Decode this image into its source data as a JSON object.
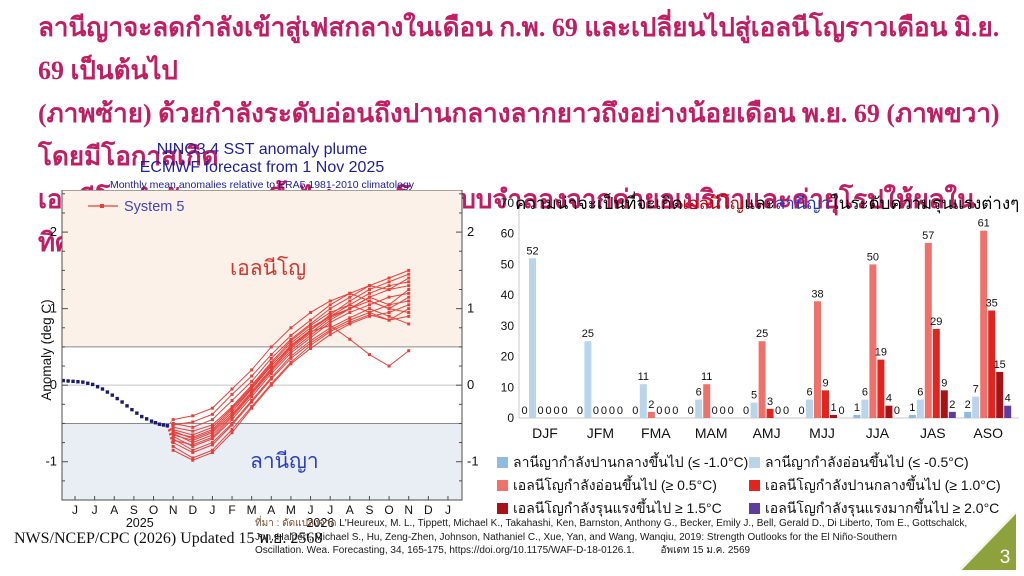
{
  "slide": {
    "header": {
      "color": "#C01E63",
      "lines": [
        "ลานีญาจะลดกำลังเข้าสู่เฟสกลางในเดือน ก.พ. 69 และเปลี่ยนไปสู่เอลนีโญราวเดือน มิ.ย. 69 เป็นต้นไป",
        "(ภาพซ้าย) ด้วยกำลังระดับอ่อนถึงปานกลางลากยาวถึงอย่างน้อยเดือน พ.ย. 69 (ภาพขวา) โดยมีโอกาสเกิด",
        "เอลนีโญกำลังรุนแรงขึ้นไป 20% โดยแบบจำลองจากค่ายอเมริกาและค่ายุโรปให้ผลในทิศทางเดียวกัน"
      ]
    },
    "footer_left": "NWS/NCEP/CPC (2026) Updated 15 พ.ย. 2568",
    "citation": {
      "prefix": "ที่มา : ดัดแปลงจาก",
      "line1": "L'Heureux, M. L., Tippett, Michael K., Takahashi, Ken, Barnston, Anthony G., Becker, Emily J., Bell, Gerald D., Di Liberto, Tom E., Gottschalck,",
      "line2": "Jon, Halpert, Michael S., Hu, Zeng-Zhen, Johnson, Nathaniel C., Xue, Yan, and Wang, Wanqiu, 2019: Strength Outlooks for the El Niño-Southern",
      "line3": "Oscillation. Wea. Forecasting, 34, 165-175, https://doi.org/10.1175/WAF-D-18-0126.1.",
      "updated": "อัพเดท 15 ม.ค. 2569"
    },
    "page_number": "3",
    "page_badge_color": "#8DA23C"
  },
  "chart_data": [
    {
      "type": "line",
      "title": "NINO3.4 SST anomaly plume",
      "subtitle": "ECMWF forecast from 1 Nov 2025",
      "note": "Monthly mean anomalies relative to ERA5 1981-2010 climatology",
      "legend": "System 5",
      "legend_color": "#4343BC",
      "ylabel": "Anomaly (deg C)",
      "ylim": [
        -1.5,
        2.55
      ],
      "yticks": [
        -1,
        0,
        1,
        2
      ],
      "x_ticklabels": [
        "J",
        "J",
        "A",
        "S",
        "O",
        "N",
        "D",
        "J",
        "F",
        "M",
        "A",
        "M",
        "J",
        "J",
        "A",
        "S",
        "O",
        "N",
        "D",
        "J"
      ],
      "year_labels": [
        {
          "text": "2025",
          "x": 3.3
        },
        {
          "text": "2026",
          "x": 12.5
        }
      ],
      "thresholds": {
        "el_nino": 0.5,
        "la_nina": -0.5
      },
      "region_labels": [
        {
          "text": "เอลนีโญ",
          "color": "#D4342C"
        },
        {
          "text": "ลานีญา",
          "color": "#2B3EC0"
        }
      ],
      "colors": {
        "ensemble": "#E4413C",
        "observed": "#1A1A6E",
        "el_nino_band": "#FBF1E8",
        "la_nina_band": "#E9EDF4"
      },
      "observed": [
        [
          -0.6,
          0.06
        ],
        [
          -0.1,
          0.05
        ],
        [
          0.4,
          0.04
        ],
        [
          0.9,
          0.01
        ],
        [
          1.4,
          -0.05
        ],
        [
          1.9,
          -0.13
        ],
        [
          2.4,
          -0.22
        ],
        [
          2.9,
          -0.32
        ],
        [
          3.4,
          -0.41
        ],
        [
          3.9,
          -0.47
        ],
        [
          4.3,
          -0.51
        ],
        [
          4.7,
          -0.53
        ]
      ],
      "forecast_start_x": 5,
      "ensemble": [
        [
          -0.45,
          -0.4,
          -0.3,
          -0.05,
          0.2,
          0.5,
          0.75,
          0.95,
          1.1,
          1.2,
          1.3,
          1.25,
          1.4
        ],
        [
          -0.5,
          -0.55,
          -0.45,
          -0.2,
          0.05,
          0.35,
          0.6,
          0.8,
          1.0,
          1.15,
          1.3,
          1.4,
          1.5
        ],
        [
          -0.52,
          -0.48,
          -0.38,
          -0.12,
          0.12,
          0.4,
          0.65,
          0.85,
          1.05,
          1.2,
          1.1,
          1.0,
          1.15
        ],
        [
          -0.55,
          -0.6,
          -0.52,
          -0.28,
          0.0,
          0.3,
          0.58,
          0.78,
          0.95,
          1.05,
          1.2,
          1.3,
          1.35
        ],
        [
          -0.58,
          -0.65,
          -0.55,
          -0.3,
          -0.02,
          0.28,
          0.55,
          0.75,
          0.9,
          1.0,
          1.15,
          1.05,
          1.25
        ],
        [
          -0.6,
          -0.7,
          -0.6,
          -0.35,
          -0.05,
          0.25,
          0.52,
          0.72,
          0.92,
          1.1,
          1.25,
          1.35,
          1.45
        ],
        [
          -0.62,
          -0.68,
          -0.58,
          -0.32,
          -0.04,
          0.26,
          0.5,
          0.7,
          0.78,
          0.6,
          0.4,
          0.25,
          0.45
        ],
        [
          -0.63,
          -0.75,
          -0.65,
          -0.4,
          -0.1,
          0.2,
          0.48,
          0.68,
          0.88,
          1.0,
          1.1,
          1.0,
          0.95
        ],
        [
          -0.65,
          -0.72,
          -0.62,
          -0.38,
          -0.08,
          0.22,
          0.5,
          0.72,
          0.9,
          1.05,
          0.95,
          0.85,
          1.0
        ],
        [
          -0.67,
          -0.8,
          -0.7,
          -0.45,
          -0.15,
          0.15,
          0.42,
          0.62,
          0.82,
          0.95,
          1.05,
          1.15,
          1.2
        ],
        [
          -0.7,
          -0.85,
          -0.75,
          -0.5,
          -0.2,
          0.1,
          0.38,
          0.58,
          0.75,
          0.88,
          1.0,
          0.9,
          0.8
        ],
        [
          -0.72,
          -0.78,
          -0.68,
          -0.42,
          -0.12,
          0.18,
          0.45,
          0.65,
          0.85,
          1.0,
          1.15,
          1.25,
          1.3
        ],
        [
          -0.75,
          -0.88,
          -0.78,
          -0.52,
          -0.22,
          0.08,
          0.35,
          0.55,
          0.72,
          0.85,
          0.95,
          1.05,
          1.1
        ],
        [
          -0.8,
          -0.95,
          -0.85,
          -0.58,
          -0.28,
          0.02,
          0.3,
          0.52,
          0.7,
          0.82,
          0.92,
          0.85,
          0.9
        ],
        [
          -0.85,
          -0.98,
          -0.88,
          -0.62,
          -0.3,
          0.0,
          0.28,
          0.48,
          0.66,
          0.8,
          0.9,
          0.95,
          1.05
        ]
      ]
    },
    {
      "type": "bar",
      "title_parts": [
        {
          "text": "ความน่าจะเป็นที่จะเกิด",
          "color": "#000000"
        },
        {
          "text": "เอลนีโญ",
          "color": "#C00000"
        },
        {
          "text": "และ",
          "color": "#000000"
        },
        {
          "text": "ลานีญา",
          "color": "#1F3BC4"
        },
        {
          "text": "ในระดับความรุนแรงต่างๆ",
          "color": "#000000"
        }
      ],
      "categories": [
        "DJF",
        "JFM",
        "FMA",
        "MAM",
        "AMJ",
        "MJJ",
        "JJA",
        "JAS",
        "ASO"
      ],
      "series": [
        {
          "name": "ลานีญากำลังปานกลางขึ้นไป (≤ -1.0°C)",
          "color": "#8FBBE0",
          "values": [
            0,
            0,
            0,
            0,
            0,
            0,
            1,
            1,
            2
          ]
        },
        {
          "name": "ลานีญากำลังอ่อนขึ้นไป (≤ -0.5°C)",
          "color": "#B9D5EC",
          "values": [
            52,
            25,
            11,
            6,
            5,
            6,
            6,
            6,
            7
          ]
        },
        {
          "name": "เอลนีโญกำลังอ่อนขึ้นไป (≥ 0.5°C)",
          "color": "#F0716C",
          "values": [
            0,
            0,
            2,
            11,
            25,
            38,
            50,
            57,
            61
          ]
        },
        {
          "name": "เอลนีโญกำลังปานกลางขึ้นไป (≥ 1.0°C)",
          "color": "#E2241F",
          "values": [
            0,
            0,
            0,
            0,
            3,
            9,
            19,
            29,
            35
          ]
        },
        {
          "name": "เอลนีโญกำลังรุนแรงขึ้นไป ≥ 1.5°C",
          "color": "#A81216",
          "values": [
            0,
            0,
            0,
            0,
            0,
            1,
            4,
            9,
            15
          ]
        },
        {
          "name": "เอลนีโญกำลังรุนแรงมากขึ้นไป ≥ 2.0°C",
          "color": "#5C3C9F",
          "values": [
            0,
            0,
            0,
            0,
            0,
            0,
            0,
            2,
            4
          ]
        }
      ],
      "ylim": [
        0,
        70
      ],
      "yticks": [
        0,
        10,
        20,
        30,
        40,
        50,
        60,
        70
      ],
      "legend_position": "bottom",
      "grid": false,
      "show_value_labels": true
    }
  ]
}
